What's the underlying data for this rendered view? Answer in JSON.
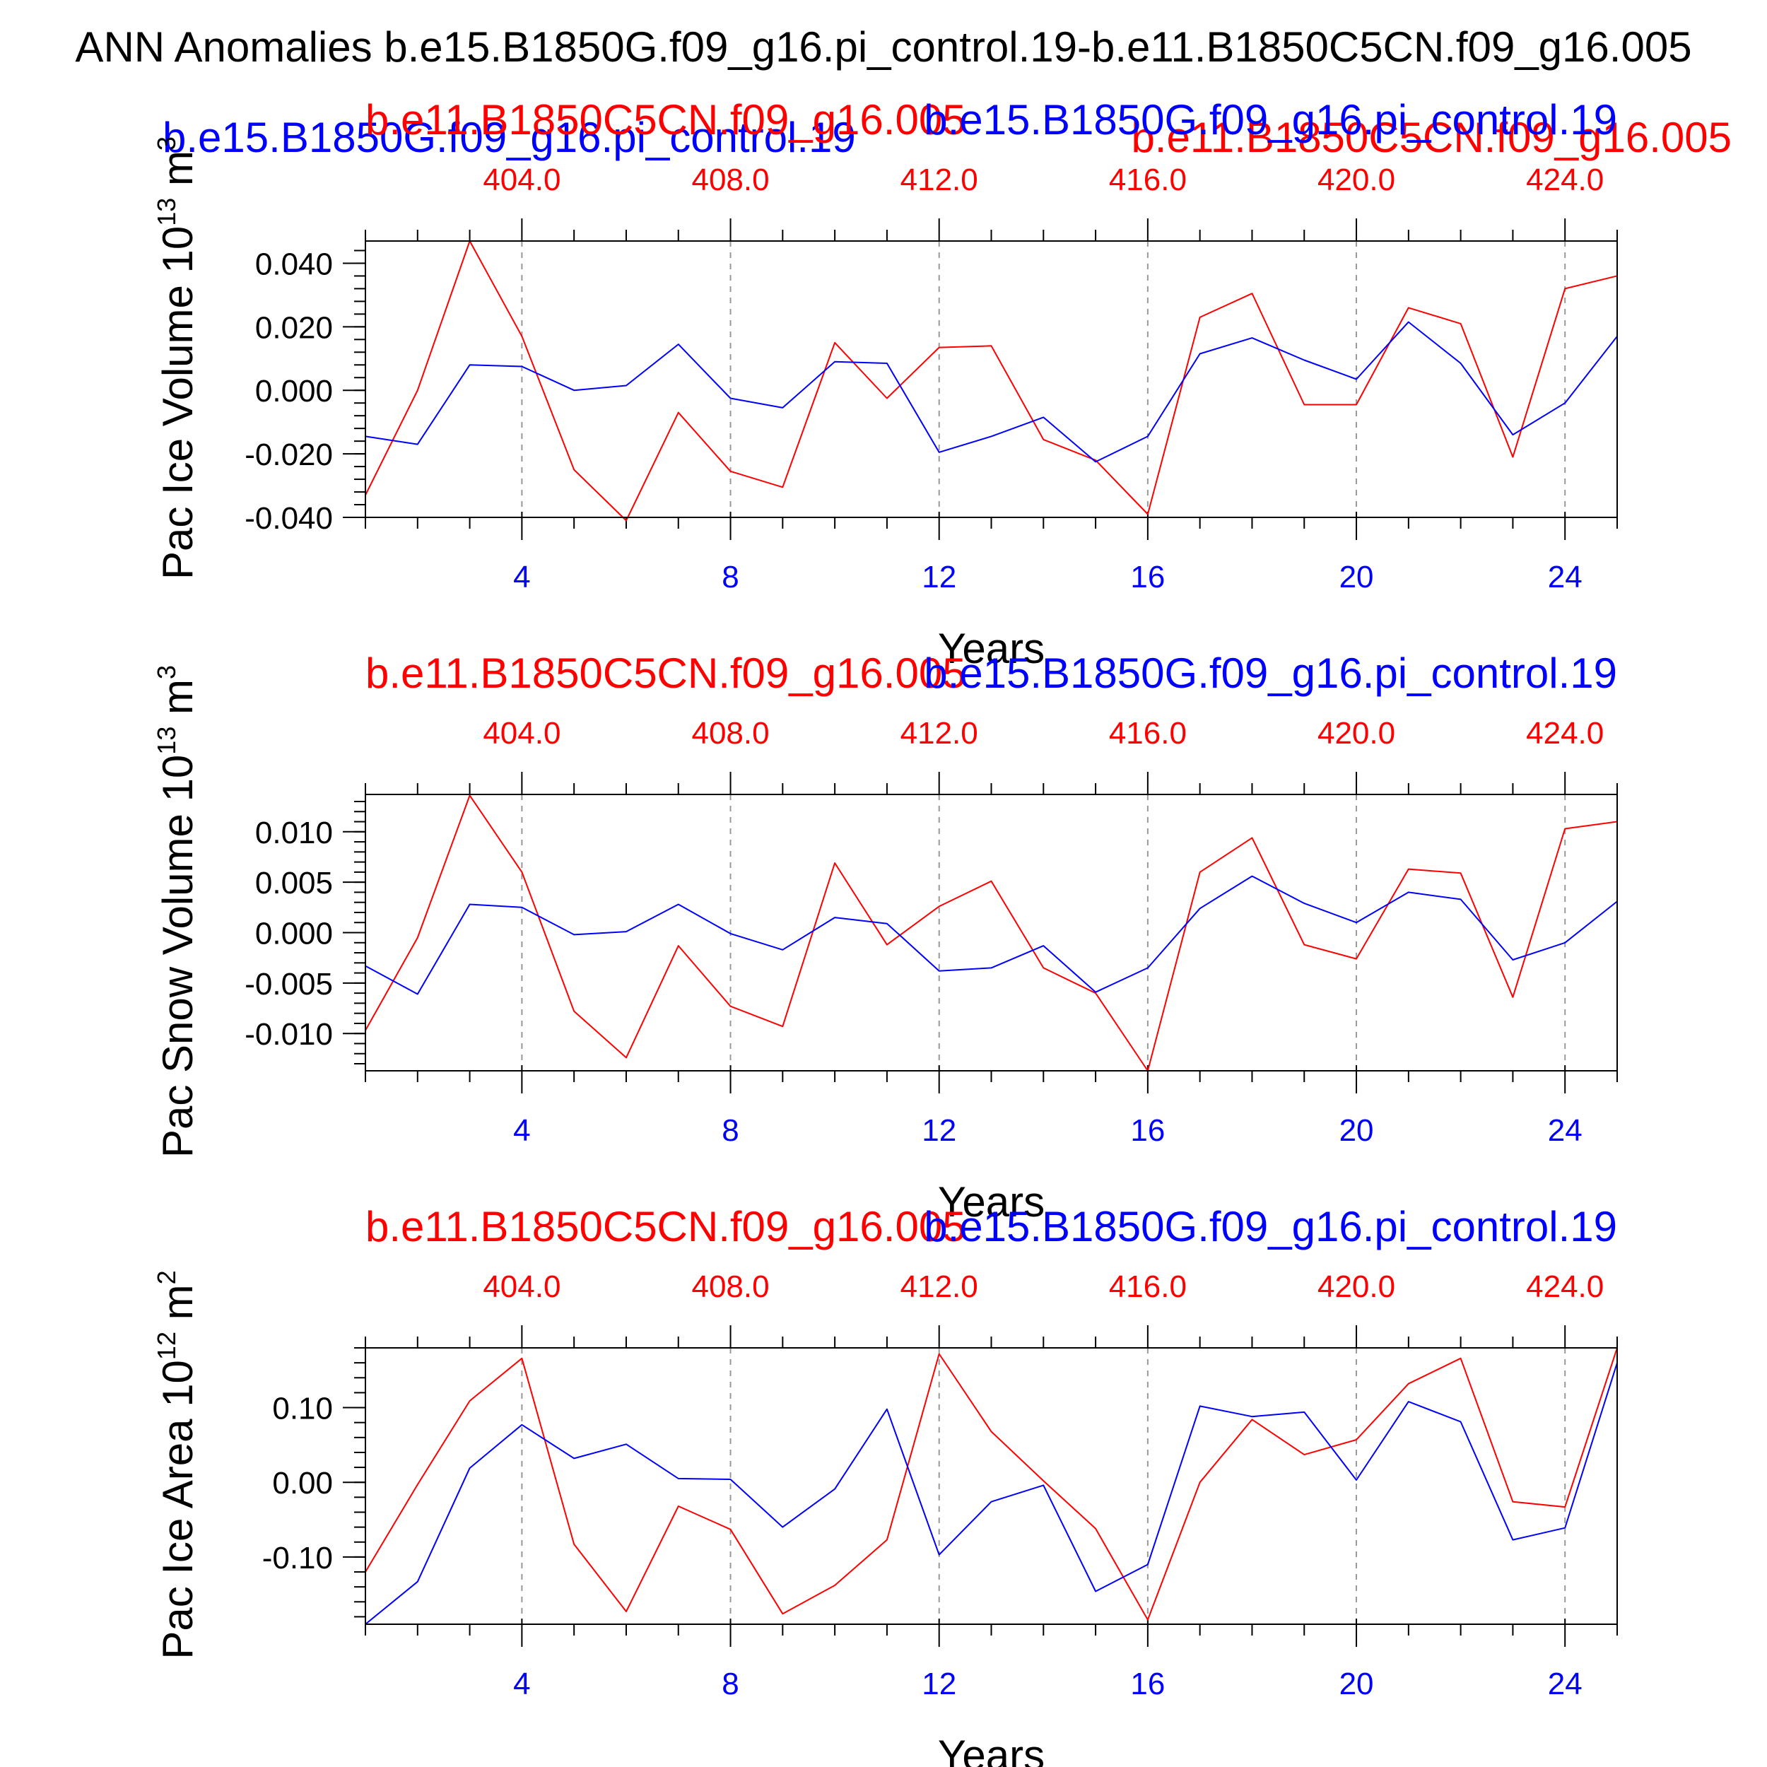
{
  "title": "ANN Anomalies b.e15.B1850G.f09_g16.pi_control.19-b.e11.B1850C5CN.f09_g16.005",
  "colors": {
    "blue": "#0000ff",
    "red": "#ff0000",
    "axis": "#000000",
    "grid": "#999999"
  },
  "header_legend": {
    "blue_label": "b.e15.B1850G.f09_g16.pi_control.19",
    "red_label": "b.e11.B1850C5CN.f09_g16.005"
  },
  "chart_data": [
    {
      "type": "line",
      "top_label_red": "b.e11.B1850C5CN.f09_g16.005",
      "top_label_blue": "b.e15.B1850G.f09_g16.pi_control.19",
      "ylabel_main": "Pac Ice Volume 10",
      "ylabel_exp": "13",
      "ylabel_unit": " m",
      "ylabel_unit_exp": "3",
      "xlabel": "Years",
      "xlim": [
        1,
        25
      ],
      "ylim": [
        -0.04,
        0.047
      ],
      "yticks": [
        -0.04,
        -0.02,
        0.0,
        0.02,
        0.04
      ],
      "ytick_labels": [
        "-0.040",
        "-0.020",
        "0.000",
        "0.020",
        "0.040"
      ],
      "yminor_step": 0.004,
      "xticks": [
        4,
        8,
        12,
        16,
        20,
        24
      ],
      "xtick_labels": [
        "4",
        "8",
        "12",
        "16",
        "20",
        "24"
      ],
      "top_ticks": [
        4,
        8,
        12,
        16,
        20,
        24
      ],
      "top_tick_labels": [
        "404.0",
        "408.0",
        "412.0",
        "416.0",
        "420.0",
        "424.0"
      ],
      "x": [
        1,
        2,
        3,
        4,
        5,
        6,
        7,
        8,
        9,
        10,
        11,
        12,
        13,
        14,
        15,
        16,
        17,
        18,
        19,
        20,
        21,
        22,
        23,
        24,
        25
      ],
      "series": [
        {
          "name": "b.e11.B1850C5CN.f09_g16.005",
          "color": "red",
          "values": [
            -0.033,
            0.0,
            0.047,
            0.017,
            -0.025,
            -0.041,
            -0.007,
            -0.0255,
            -0.0305,
            0.015,
            -0.0025,
            0.0135,
            0.014,
            -0.0155,
            -0.022,
            -0.039,
            0.023,
            0.0305,
            -0.0045,
            -0.0045,
            0.026,
            0.021,
            -0.021,
            0.032,
            0.036
          ]
        },
        {
          "name": "b.e15.B1850G.f09_g16.pi_control.19",
          "color": "blue",
          "values": [
            -0.0145,
            -0.017,
            0.008,
            0.0075,
            0.0,
            0.0015,
            0.0145,
            -0.0025,
            -0.0055,
            0.009,
            0.0085,
            -0.0195,
            -0.0145,
            -0.0085,
            -0.0225,
            -0.0145,
            0.0115,
            0.0165,
            0.0095,
            0.0035,
            0.0215,
            0.0085,
            -0.014,
            -0.004,
            0.017
          ]
        }
      ]
    },
    {
      "type": "line",
      "top_label_red": "b.e11.B1850C5CN.f09_g16.005",
      "top_label_blue": "b.e15.B1850G.f09_g16.pi_control.19",
      "ylabel_main": "Pac Snow Volume 10",
      "ylabel_exp": "13",
      "ylabel_unit": " m",
      "ylabel_unit_exp": "3",
      "xlabel": "Years",
      "xlim": [
        1,
        25
      ],
      "ylim": [
        -0.0137,
        0.0137
      ],
      "yticks": [
        -0.01,
        -0.005,
        0.0,
        0.005,
        0.01
      ],
      "ytick_labels": [
        "-0.010",
        "-0.005",
        "0.000",
        "0.005",
        "0.010"
      ],
      "yminor_step": 0.001,
      "xticks": [
        4,
        8,
        12,
        16,
        20,
        24
      ],
      "xtick_labels": [
        "4",
        "8",
        "12",
        "16",
        "20",
        "24"
      ],
      "top_ticks": [
        4,
        8,
        12,
        16,
        20,
        24
      ],
      "top_tick_labels": [
        "404.0",
        "408.0",
        "412.0",
        "416.0",
        "420.0",
        "424.0"
      ],
      "x": [
        1,
        2,
        3,
        4,
        5,
        6,
        7,
        8,
        9,
        10,
        11,
        12,
        13,
        14,
        15,
        16,
        17,
        18,
        19,
        20,
        21,
        22,
        23,
        24,
        25
      ],
      "series": [
        {
          "name": "b.e11.B1850C5CN.f09_g16.005",
          "color": "red",
          "values": [
            -0.0097,
            -0.0005,
            0.0136,
            0.006,
            -0.0078,
            -0.0124,
            -0.0013,
            -0.0073,
            -0.0093,
            0.0069,
            -0.0012,
            0.0026,
            0.0051,
            -0.0035,
            -0.006,
            -0.0137,
            0.006,
            0.0094,
            -0.0012,
            -0.0026,
            0.0063,
            0.0059,
            -0.0064,
            0.0103,
            0.011
          ]
        },
        {
          "name": "b.e15.B1850G.f09_g16.pi_control.19",
          "color": "blue",
          "values": [
            -0.0033,
            -0.0061,
            0.0028,
            0.0025,
            -0.0002,
            0.0001,
            0.0028,
            -0.0001,
            -0.0017,
            0.0015,
            0.0009,
            -0.0038,
            -0.0035,
            -0.0013,
            -0.0059,
            -0.0035,
            0.0024,
            0.0056,
            0.0029,
            0.001,
            0.004,
            0.0033,
            -0.0027,
            -0.001,
            0.0031
          ]
        }
      ]
    },
    {
      "type": "line",
      "top_label_red": "b.e11.B1850C5CN.f09_g16.005",
      "top_label_blue": "b.e15.B1850G.f09_g16.pi_control.19",
      "ylabel_main": "Pac Ice Area 10",
      "ylabel_exp": "12",
      "ylabel_unit": " m",
      "ylabel_unit_exp": "2",
      "xlabel": "Years",
      "xlim": [
        1,
        25
      ],
      "ylim": [
        -0.19,
        0.18
      ],
      "yticks": [
        -0.1,
        0.0,
        0.1
      ],
      "ytick_labels": [
        "-0.10",
        "0.00",
        "0.10"
      ],
      "yminor_step": 0.02,
      "xticks": [
        4,
        8,
        12,
        16,
        20,
        24
      ],
      "xtick_labels": [
        "4",
        "8",
        "12",
        "16",
        "20",
        "24"
      ],
      "top_ticks": [
        4,
        8,
        12,
        16,
        20,
        24
      ],
      "top_tick_labels": [
        "404.0",
        "408.0",
        "412.0",
        "416.0",
        "420.0",
        "424.0"
      ],
      "x": [
        1,
        2,
        3,
        4,
        5,
        6,
        7,
        8,
        9,
        10,
        11,
        12,
        13,
        14,
        15,
        16,
        17,
        18,
        19,
        20,
        21,
        22,
        23,
        24,
        25
      ],
      "series": [
        {
          "name": "b.e11.B1850C5CN.f09_g16.005",
          "color": "red",
          "values": [
            -0.12,
            -0.003,
            0.109,
            0.166,
            -0.083,
            -0.173,
            -0.032,
            -0.063,
            -0.176,
            -0.138,
            -0.077,
            0.172,
            0.068,
            0.002,
            -0.062,
            -0.184,
            0.0,
            0.084,
            0.037,
            0.057,
            0.132,
            0.166,
            -0.026,
            -0.033,
            0.18
          ]
        },
        {
          "name": "b.e15.B1850G.f09_g16.pi_control.19",
          "color": "blue",
          "values": [
            -0.19,
            -0.133,
            0.019,
            0.077,
            0.032,
            0.051,
            0.005,
            0.004,
            -0.06,
            -0.009,
            0.098,
            -0.097,
            -0.026,
            -0.004,
            -0.146,
            -0.11,
            0.102,
            0.088,
            0.094,
            0.003,
            0.108,
            0.081,
            -0.077,
            -0.061,
            0.16
          ]
        }
      ]
    }
  ]
}
